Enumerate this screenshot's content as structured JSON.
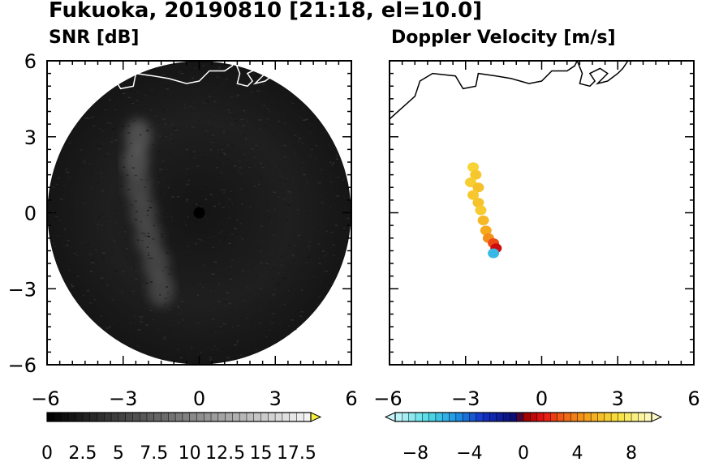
{
  "figure": {
    "title": "Fukuoka, 20190810 [21:18, el=10.0]"
  },
  "chart_data": [
    {
      "type": "heatmap",
      "title": "SNR [dB]",
      "xlim": [
        -6,
        6
      ],
      "ylim": [
        -6,
        6
      ],
      "x_ticks": [
        "−6",
        "−3",
        "0",
        "3",
        "6"
      ],
      "y_ticks": [
        "6",
        "3",
        "0",
        "−3",
        "−6"
      ],
      "radar_range": 6,
      "colorbar": {
        "min": 0,
        "max": 18.5,
        "levels": 37,
        "extend": "max",
        "tick_labels": [
          "0",
          "2.5",
          "5",
          "7.5",
          "10",
          "12.5",
          "15",
          "17.5"
        ],
        "colors_from": "#000000",
        "colors_to": "#f4f4f4",
        "extend_color": "#f7ef3a"
      },
      "features": [
        {
          "name": "enhanced band",
          "x": [
            -2.6,
            -1.2
          ],
          "y": [
            -3.0,
            3.0
          ],
          "snr": [
            6,
            9
          ]
        }
      ]
    },
    {
      "type": "scatter",
      "title": "Doppler Velocity [m/s]",
      "xlim": [
        -6,
        6
      ],
      "ylim": [
        -6,
        6
      ],
      "x_ticks": [
        "−6",
        "−3",
        "0",
        "3",
        "6"
      ],
      "y_ticks": [
        "6",
        "3",
        "0",
        "−3",
        "−6"
      ],
      "colorbar": {
        "min": -9.5,
        "max": 9.5,
        "extend": "both",
        "tick_labels": [
          "−8",
          "−4",
          "0",
          "4",
          "8"
        ],
        "tick_values": [
          -8,
          -4,
          0,
          4,
          8
        ]
      },
      "echo_points": [
        {
          "x": -2.7,
          "y": 1.8,
          "v": 6.5
        },
        {
          "x": -2.6,
          "y": 1.5,
          "v": 6.0
        },
        {
          "x": -2.8,
          "y": 1.2,
          "v": 6.3
        },
        {
          "x": -2.5,
          "y": 1.0,
          "v": 5.8
        },
        {
          "x": -2.7,
          "y": 0.7,
          "v": 6.1
        },
        {
          "x": -2.5,
          "y": 0.4,
          "v": 5.9
        },
        {
          "x": -2.4,
          "y": 0.1,
          "v": 6.2
        },
        {
          "x": -2.3,
          "y": -0.3,
          "v": 5.5
        },
        {
          "x": -2.2,
          "y": -0.7,
          "v": 5.0
        },
        {
          "x": -2.1,
          "y": -1.0,
          "v": 4.2
        },
        {
          "x": -1.9,
          "y": -1.2,
          "v": 2.5
        },
        {
          "x": -1.8,
          "y": -1.4,
          "v": 1.0
        },
        {
          "x": -1.9,
          "y": -1.6,
          "v": -6.0
        }
      ]
    }
  ],
  "colors": {
    "coastline_snr": "#ffffff",
    "coastline_doppler": "#000000",
    "radar_disc": "#1a1a1a"
  }
}
